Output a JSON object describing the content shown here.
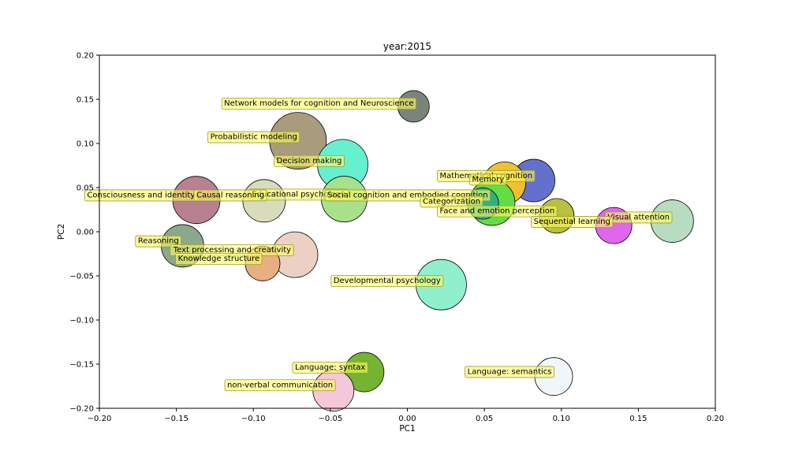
{
  "chart_data": {
    "type": "scatter",
    "title": "year:2015",
    "xlabel": "PC1",
    "ylabel": "PC2",
    "xlim": [
      -0.2,
      0.2
    ],
    "ylim": [
      -0.2,
      0.2
    ],
    "xticks": [
      "−0.20",
      "−0.15",
      "−0.10",
      "−0.05",
      "0.00",
      "0.05",
      "0.10",
      "0.15",
      "0.20"
    ],
    "yticks": [
      "0.20",
      "0.15",
      "0.10",
      "0.05",
      "0.00",
      "−0.05",
      "−0.10",
      "−0.15",
      "−0.20"
    ],
    "grid": false,
    "points": [
      {
        "label": "Network models for cognition and Neuroscience",
        "x": 0.004,
        "y": 0.142,
        "size": 20,
        "color": "#7a857a"
      },
      {
        "label": "Probabilistic modeling",
        "x": -0.071,
        "y": 0.103,
        "size": 36,
        "color": "#a89c7c"
      },
      {
        "label": "Decision making",
        "x": -0.042,
        "y": 0.076,
        "size": 32,
        "color": "#66f0d0"
      },
      {
        "label": "Mathematical cognition",
        "x": 0.082,
        "y": 0.058,
        "size": 27,
        "color": "#6470cc"
      },
      {
        "label": "Memory",
        "x": 0.063,
        "y": 0.055,
        "size": 27,
        "color": "#f0c030"
      },
      {
        "label": "Causal reasoning",
        "x": -0.137,
        "y": 0.036,
        "size": 30,
        "color": "#b88090"
      },
      {
        "label": "Educational psychology",
        "x": -0.093,
        "y": 0.035,
        "size": 27,
        "color": "#d8dcbc"
      },
      {
        "label": "Social cognition and embodied cognition",
        "x": -0.041,
        "y": 0.037,
        "size": 29,
        "color": "#a8e08c"
      },
      {
        "label": "Face and emotion perception",
        "x": 0.055,
        "y": 0.033,
        "size": 29,
        "color": "#66dc44"
      },
      {
        "label": "Categorization",
        "x": 0.049,
        "y": 0.032,
        "size": 20,
        "color": "#2ab08c"
      },
      {
        "label": "Sequential learning",
        "x": 0.097,
        "y": 0.018,
        "size": 22,
        "color": "#b8c040"
      },
      {
        "label": "Visual attention",
        "x": 0.134,
        "y": 0.007,
        "size": 23,
        "color": "#e066ee"
      },
      {
        "label": "Consciousness and identity",
        "x": 0.172,
        "y": 0.012,
        "size": 27,
        "color": "#b8dcc0"
      },
      {
        "label": "Reasoning",
        "x": -0.146,
        "y": -0.016,
        "size": 27,
        "color": "#8ca88c"
      },
      {
        "label": "Text processing and creativity",
        "x": -0.073,
        "y": -0.026,
        "size": 29,
        "color": "#ecd0c4"
      },
      {
        "label": "Knowledge structure",
        "x": -0.094,
        "y": -0.036,
        "size": 22,
        "color": "#e8b080"
      },
      {
        "label": "Developmental psychology",
        "x": 0.022,
        "y": -0.06,
        "size": 32,
        "color": "#90f0cc"
      },
      {
        "label": "Language: syntax",
        "x": -0.028,
        "y": -0.159,
        "size": 25,
        "color": "#74b430"
      },
      {
        "label": "Language: semantics",
        "x": 0.095,
        "y": -0.164,
        "size": 24,
        "color": "#f0f6fc"
      },
      {
        "label": "non-verbal communication",
        "x": -0.048,
        "y": -0.18,
        "size": 26,
        "color": "#f4c8d8"
      }
    ],
    "annotations": [
      {
        "text": "Network models for cognition and Neuroscience",
        "x": -0.119,
        "y": 0.146
      },
      {
        "text": "Probabilistic modeling",
        "x": -0.128,
        "y": 0.108
      },
      {
        "text": "Decision making",
        "x": -0.085,
        "y": 0.081
      },
      {
        "text": "Mathematical cognition",
        "x": 0.021,
        "y": 0.064
      },
      {
        "text": "Memory",
        "x": 0.042,
        "y": 0.06
      },
      {
        "text": "Educational psychology",
        "x": -0.101,
        "y": 0.043
      },
      {
        "text": "Consciousness and identity",
        "x": -0.208,
        "y": 0.042
      },
      {
        "text": "Causal reasoning",
        "x": -0.137,
        "y": 0.042
      },
      {
        "text": "Social cognition and embodied cognition",
        "x": -0.052,
        "y": 0.042
      },
      {
        "text": "Categorization",
        "x": 0.01,
        "y": 0.035
      },
      {
        "text": "Face and emotion perception",
        "x": 0.021,
        "y": 0.024
      },
      {
        "text": "Visual attention",
        "x": 0.13,
        "y": 0.017
      },
      {
        "text": "Sequential learning",
        "x": 0.082,
        "y": 0.012
      },
      {
        "text": "Reasoning",
        "x": -0.175,
        "y": -0.01
      },
      {
        "text": "Text processing and creativity",
        "x": -0.152,
        "y": -0.02
      },
      {
        "text": "Knowledge structure",
        "x": -0.149,
        "y": -0.03
      },
      {
        "text": "Developmental psychology",
        "x": -0.048,
        "y": -0.055
      },
      {
        "text": "Language: syntax",
        "x": -0.073,
        "y": -0.153
      },
      {
        "text": "Language: semantics",
        "x": 0.039,
        "y": -0.158
      },
      {
        "text": "non-verbal communication",
        "x": -0.117,
        "y": -0.173
      }
    ]
  }
}
